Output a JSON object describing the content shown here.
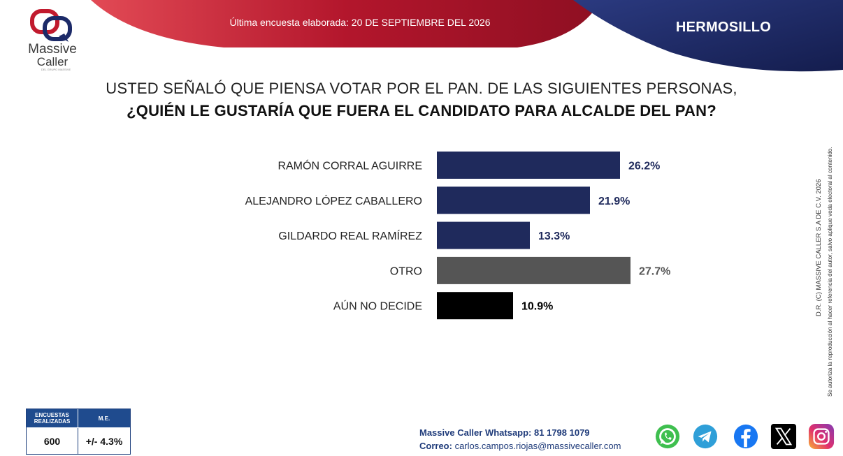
{
  "header": {
    "date_text": "Última encuesta elaborada: 20 DE SEPTIEMBRE DEL 2026",
    "city": "HERMOSILLO",
    "colors": {
      "red": "#b3162c",
      "navy": "#1c2a68"
    }
  },
  "logo": {
    "line1": "Massive",
    "line2": "Caller",
    "tagline": "DEL GRUPO MASSIVE"
  },
  "question": {
    "line1": "USTED SEÑALÓ QUE PIENSA VOTAR POR EL PAN. DE LAS SIGUIENTES PERSONAS,",
    "line2": "¿QUIÉN LE GUSTARÍA QUE FUERA EL CANDIDATO PARA ALCALDE DEL PAN?"
  },
  "chart_data": {
    "type": "bar",
    "orientation": "horizontal",
    "categories": [
      "RAMÓN CORRAL AGUIRRE",
      "ALEJANDRO LÓPEZ CABALLERO",
      "GILDARDO REAL RAMÍREZ",
      "OTRO",
      "AÚN NO DECIDE"
    ],
    "values": [
      26.2,
      21.9,
      13.3,
      27.7,
      10.9
    ],
    "value_labels": [
      "26.2%",
      "21.9%",
      "13.3%",
      "27.7%",
      "10.9%"
    ],
    "colors": [
      "#1f2a5c",
      "#1f2a5c",
      "#1f2a5c",
      "#555555",
      "#000000"
    ],
    "label_colors": [
      "#1f2a5c",
      "#1f2a5c",
      "#1f2a5c",
      "#555555",
      "#000000"
    ],
    "xlim": [
      0,
      30
    ],
    "grid": false,
    "title": "",
    "xlabel": "",
    "ylabel": ""
  },
  "side_note": {
    "line1": "D.R. (C) MASSIVE CALLER S.A DE C.V. 2026",
    "line2": "Se autoriza la reproducción al hacer referencia del autor, salvo aplique veda electoral al contenido."
  },
  "stats": {
    "header1": "ENCUESTAS REALIZADAS",
    "header2": "M.E.",
    "value1": "600",
    "value2": "+/- 4.3%"
  },
  "footer": {
    "whatsapp_label": "Massive Caller Whatsapp:",
    "whatsapp_number": "81 1798 1079",
    "email_label": "Correo:",
    "email": "carlos.campos.riojas@massivecaller.com"
  },
  "social": [
    "whatsapp-icon",
    "telegram-icon",
    "facebook-icon",
    "x-icon",
    "instagram-icon"
  ]
}
